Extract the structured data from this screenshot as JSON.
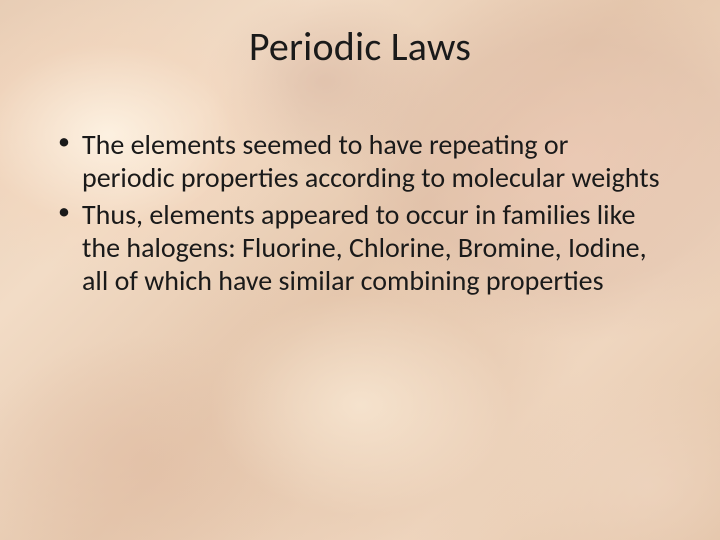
{
  "slide": {
    "title": "Periodic Laws",
    "bullets": [
      "The elements seemed to have repeating or periodic properties according to molecular weights",
      "Thus, elements appeared to occur in families like the halogens: Fluorine, Chlorine, Bromine, Iodine, all of which have similar combining properties"
    ],
    "styling": {
      "background_base": "#e8cdb5",
      "background_highlights": [
        "#fff5e6",
        "#ebC8b4",
        "#fae9d7",
        "#e1bea5",
        "#f0d7c3"
      ],
      "title_fontsize": 40,
      "title_color": "#1a1a1a",
      "body_fontsize": 28,
      "body_color": "#1a1a1a",
      "font_family": "Calibri",
      "slide_width": 720,
      "slide_height": 540
    }
  }
}
